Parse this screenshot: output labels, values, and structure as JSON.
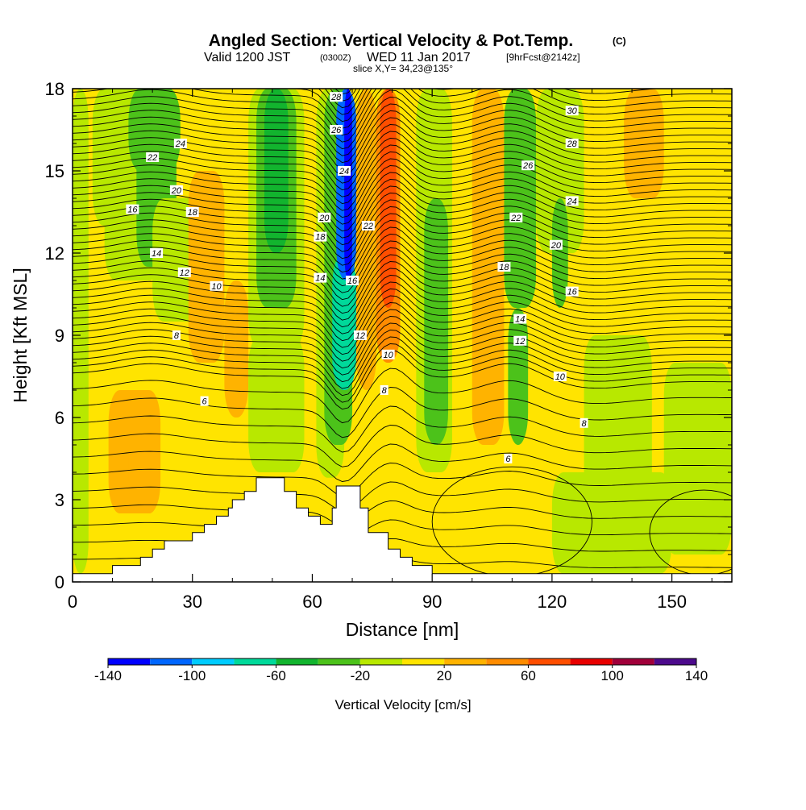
{
  "header": {
    "title": "Angled Section: Vertical Velocity & Pot.Temp.",
    "title_suffix": "(C)",
    "valid_prefix": "Valid 1200 JST",
    "valid_utc": "(0300Z)",
    "valid_date": "WED 11 Jan 2017",
    "forecast": "[9hrFcst@2142z]",
    "slice": "slice X,Y= 34,23@135°"
  },
  "chart_data": {
    "type": "heatmap",
    "xlabel": "Distance [nm]",
    "ylabel": "Height [Kft MSL]",
    "xlim": [
      0,
      165
    ],
    "ylim": [
      0,
      18
    ],
    "x_ticks": [
      0,
      30,
      60,
      90,
      120,
      150
    ],
    "y_ticks": [
      0,
      3,
      6,
      9,
      12,
      15,
      18
    ],
    "colorbar": {
      "label": "Vertical Velocity [cm/s]",
      "ticks": [
        -140,
        -100,
        -60,
        -20,
        20,
        60,
        100,
        140
      ],
      "bounds": [
        -140,
        -120,
        -100,
        -80,
        -60,
        -40,
        -20,
        0,
        20,
        40,
        60,
        80,
        100,
        120,
        140
      ],
      "colors": [
        "#0000ff",
        "#0066ff",
        "#00ccff",
        "#00d99a",
        "#12b42e",
        "#4cc21a",
        "#b8e800",
        "#ffe400",
        "#ffb300",
        "#ff8c00",
        "#ff4e00",
        "#e80000",
        "#a0003a",
        "#4c0a8c"
      ]
    },
    "terrain_kft": [
      [
        0,
        0.3
      ],
      [
        10,
        0.3
      ],
      [
        10,
        0.6
      ],
      [
        17,
        0.6
      ],
      [
        17,
        0.9
      ],
      [
        20,
        0.9
      ],
      [
        20,
        1.2
      ],
      [
        23,
        1.2
      ],
      [
        23,
        1.5
      ],
      [
        30,
        1.5
      ],
      [
        30,
        1.8
      ],
      [
        33,
        1.8
      ],
      [
        33,
        2.1
      ],
      [
        36,
        2.1
      ],
      [
        36,
        2.4
      ],
      [
        39,
        2.4
      ],
      [
        39,
        2.7
      ],
      [
        40,
        2.7
      ],
      [
        40,
        3.0
      ],
      [
        43,
        3.0
      ],
      [
        43,
        3.3
      ],
      [
        46,
        3.3
      ],
      [
        46,
        3.8
      ],
      [
        53,
        3.8
      ],
      [
        53,
        3.3
      ],
      [
        56,
        3.3
      ],
      [
        56,
        2.7
      ],
      [
        59,
        2.7
      ],
      [
        59,
        2.4
      ],
      [
        62,
        2.4
      ],
      [
        62,
        2.1
      ],
      [
        65,
        2.1
      ],
      [
        65,
        2.7
      ],
      [
        66,
        2.7
      ],
      [
        66,
        3.5
      ],
      [
        72,
        3.5
      ],
      [
        72,
        2.7
      ],
      [
        74,
        2.7
      ],
      [
        74,
        1.8
      ],
      [
        79,
        1.8
      ],
      [
        79,
        1.2
      ],
      [
        82,
        1.2
      ],
      [
        82,
        0.9
      ],
      [
        85,
        0.9
      ],
      [
        85,
        0.6
      ],
      [
        90,
        0.6
      ],
      [
        90,
        0.3
      ],
      [
        165,
        0.3
      ]
    ],
    "velocity_field": {
      "background_cm_s": 0,
      "cells": [
        {
          "x": [
            0,
            4
          ],
          "y": [
            0.3,
            18
          ],
          "w": -10
        },
        {
          "x": [
            5,
            18
          ],
          "y": [
            13,
            18
          ],
          "w": -10
        },
        {
          "x": [
            8,
            22
          ],
          "y": [
            11,
            18
          ],
          "w": -15
        },
        {
          "x": [
            14,
            27
          ],
          "y": [
            15,
            18
          ],
          "w": -30
        },
        {
          "x": [
            16,
            26
          ],
          "y": [
            11.5,
            17
          ],
          "w": -30
        },
        {
          "x": [
            20,
            34
          ],
          "y": [
            9.5,
            14
          ],
          "w": -10
        },
        {
          "x": [
            27,
            40
          ],
          "y": [
            14,
            18
          ],
          "w": 10
        },
        {
          "x": [
            29,
            38
          ],
          "y": [
            8,
            15
          ],
          "w": 25
        },
        {
          "x": [
            9,
            22
          ],
          "y": [
            2.5,
            7
          ],
          "w": 25
        },
        {
          "x": [
            14,
            22
          ],
          "y": [
            2.5,
            6
          ],
          "w": 30
        },
        {
          "x": [
            38,
            44
          ],
          "y": [
            6,
            11
          ],
          "w": 25
        },
        {
          "x": [
            44,
            58
          ],
          "y": [
            8.5,
            18
          ],
          "w": -10
        },
        {
          "x": [
            46,
            56
          ],
          "y": [
            10,
            18
          ],
          "w": -30
        },
        {
          "x": [
            48,
            54
          ],
          "y": [
            12,
            18
          ],
          "w": -50
        },
        {
          "x": [
            44,
            58
          ],
          "y": [
            4,
            9
          ],
          "w": -10
        },
        {
          "x": [
            58,
            66
          ],
          "y": [
            2.5,
            18
          ],
          "w": 10
        },
        {
          "x": [
            61,
            68
          ],
          "y": [
            3.8,
            18
          ],
          "w": -15
        },
        {
          "x": [
            63,
            70
          ],
          "y": [
            5,
            18
          ],
          "w": -35
        },
        {
          "x": [
            65,
            71
          ],
          "y": [
            7,
            12
          ],
          "w": -70
        },
        {
          "x": [
            66,
            71
          ],
          "y": [
            11,
            18
          ],
          "w": -110
        },
        {
          "x": [
            68,
            70
          ],
          "y": [
            11,
            18
          ],
          "w": -135
        },
        {
          "x": [
            71,
            76
          ],
          "y": [
            7,
            18
          ],
          "w": 30
        },
        {
          "x": [
            76,
            82
          ],
          "y": [
            8,
            18
          ],
          "w": 50
        },
        {
          "x": [
            77,
            81
          ],
          "y": [
            10,
            18
          ],
          "w": 70
        },
        {
          "x": [
            82,
            86
          ],
          "y": [
            3,
            18
          ],
          "w": 10
        },
        {
          "x": [
            86,
            95
          ],
          "y": [
            4,
            18
          ],
          "w": -10
        },
        {
          "x": [
            88,
            94
          ],
          "y": [
            5,
            14
          ],
          "w": -30
        },
        {
          "x": [
            95,
            100
          ],
          "y": [
            1,
            18
          ],
          "w": 5
        },
        {
          "x": [
            100,
            108
          ],
          "y": [
            5,
            18
          ],
          "w": 25
        },
        {
          "x": [
            102,
            106
          ],
          "y": [
            12,
            18
          ],
          "w": 35
        },
        {
          "x": [
            108,
            116
          ],
          "y": [
            10,
            18
          ],
          "w": -25
        },
        {
          "x": [
            109,
            114
          ],
          "y": [
            5,
            10
          ],
          "w": -30
        },
        {
          "x": [
            116,
            128
          ],
          "y": [
            12,
            18
          ],
          "w": -10
        },
        {
          "x": [
            120,
            124
          ],
          "y": [
            10,
            14
          ],
          "w": -30
        },
        {
          "x": [
            128,
            145
          ],
          "y": [
            2,
            9
          ],
          "w": -10
        },
        {
          "x": [
            138,
            148
          ],
          "y": [
            14,
            18
          ],
          "w": 25
        },
        {
          "x": [
            148,
            165
          ],
          "y": [
            1,
            8
          ],
          "w": -10
        },
        {
          "x": [
            120,
            150
          ],
          "y": [
            0.3,
            4
          ],
          "w": -10
        }
      ]
    },
    "potential_temperature": {
      "levels": [
        2,
        4,
        6,
        8,
        10,
        12,
        14,
        16,
        18,
        20,
        22,
        24,
        26,
        28,
        30
      ],
      "contour_labels": [
        {
          "x": 66,
          "y": 17.7,
          "text": "28"
        },
        {
          "x": 66,
          "y": 16.5,
          "text": "26"
        },
        {
          "x": 68,
          "y": 15.0,
          "text": "24"
        },
        {
          "x": 74,
          "y": 13.0,
          "text": "22"
        },
        {
          "x": 63,
          "y": 13.3,
          "text": "20"
        },
        {
          "x": 62,
          "y": 12.6,
          "text": "18"
        },
        {
          "x": 70,
          "y": 11.0,
          "text": "16"
        },
        {
          "x": 62,
          "y": 11.1,
          "text": "14"
        },
        {
          "x": 72,
          "y": 9.0,
          "text": "12"
        },
        {
          "x": 79,
          "y": 8.3,
          "text": "10"
        },
        {
          "x": 78,
          "y": 7.0,
          "text": "8"
        },
        {
          "x": 27,
          "y": 16.0,
          "text": "24"
        },
        {
          "x": 20,
          "y": 15.5,
          "text": "22"
        },
        {
          "x": 26,
          "y": 14.3,
          "text": "20"
        },
        {
          "x": 30,
          "y": 13.5,
          "text": "18"
        },
        {
          "x": 15,
          "y": 13.6,
          "text": "16"
        },
        {
          "x": 21,
          "y": 12.0,
          "text": "14"
        },
        {
          "x": 28,
          "y": 11.3,
          "text": "12"
        },
        {
          "x": 36,
          "y": 10.8,
          "text": "10"
        },
        {
          "x": 26,
          "y": 9.0,
          "text": "8"
        },
        {
          "x": 33,
          "y": 6.6,
          "text": "6"
        },
        {
          "x": 125,
          "y": 17.2,
          "text": "30"
        },
        {
          "x": 125,
          "y": 16.0,
          "text": "28"
        },
        {
          "x": 114,
          "y": 15.2,
          "text": "26"
        },
        {
          "x": 125,
          "y": 13.9,
          "text": "24"
        },
        {
          "x": 111,
          "y": 13.3,
          "text": "22"
        },
        {
          "x": 121,
          "y": 12.3,
          "text": "20"
        },
        {
          "x": 108,
          "y": 11.5,
          "text": "18"
        },
        {
          "x": 125,
          "y": 10.6,
          "text": "16"
        },
        {
          "x": 112,
          "y": 9.6,
          "text": "14"
        },
        {
          "x": 112,
          "y": 8.8,
          "text": "12"
        },
        {
          "x": 122,
          "y": 7.5,
          "text": "10"
        },
        {
          "x": 128,
          "y": 5.8,
          "text": "8"
        },
        {
          "x": 109,
          "y": 4.5,
          "text": "6"
        }
      ]
    }
  }
}
